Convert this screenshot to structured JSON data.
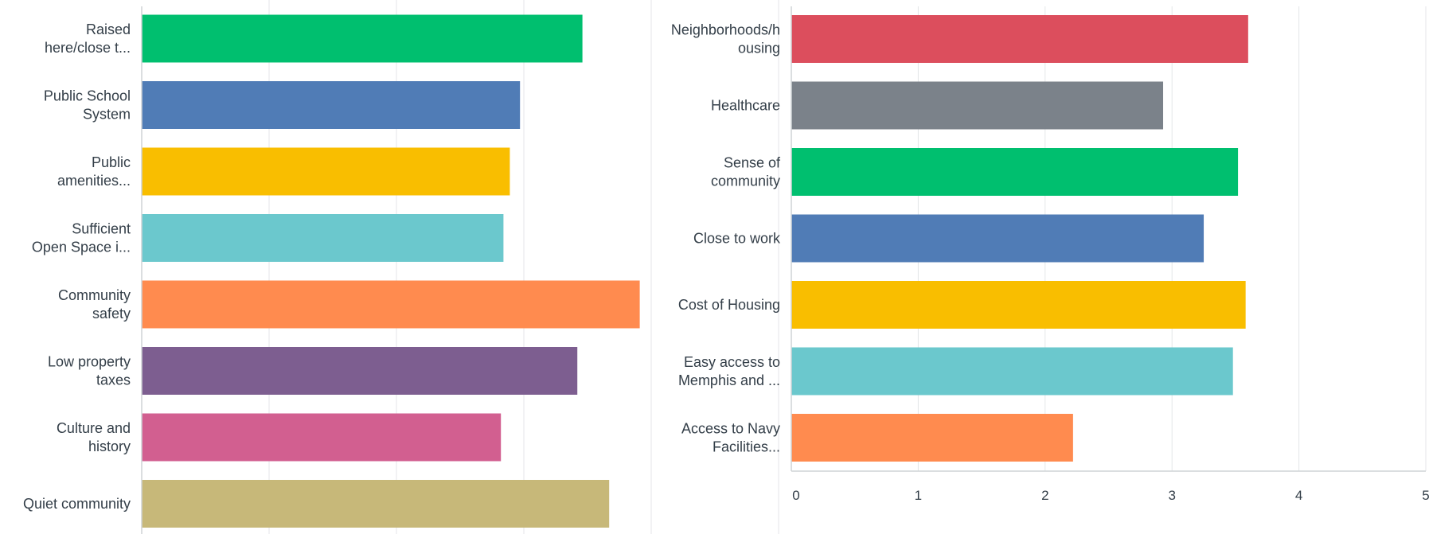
{
  "chart_data": [
    {
      "type": "bar",
      "orientation": "horizontal",
      "categories": [
        [
          "Raised",
          "here/close t..."
        ],
        [
          "Public School",
          "System"
        ],
        [
          "Public",
          "amenities..."
        ],
        [
          "Sufficient",
          "Open Space i..."
        ],
        [
          "Community",
          "safety"
        ],
        [
          "Low property",
          "taxes"
        ],
        [
          "Culture and",
          "history"
        ],
        [
          "Quiet community"
        ]
      ],
      "values": [
        3.46,
        2.97,
        2.89,
        2.84,
        3.91,
        3.42,
        2.82,
        3.67
      ],
      "colors": [
        "#00bf6f",
        "#507cb6",
        "#f9be00",
        "#6bc8cd",
        "#ff8b4f",
        "#7d5e90",
        "#d25f90",
        "#c7b879"
      ],
      "xlim": [
        0,
        5
      ],
      "xticks": [],
      "grid": true
    },
    {
      "type": "bar",
      "orientation": "horizontal",
      "categories": [
        [
          "Neighborhoods/h",
          "ousing"
        ],
        [
          "Healthcare"
        ],
        [
          "Sense of",
          "community"
        ],
        [
          "Close to work"
        ],
        [
          "Cost of Housing"
        ],
        [
          "Easy access to",
          "Memphis and ..."
        ],
        [
          "Access to Navy",
          "Facilities..."
        ]
      ],
      "values": [
        3.6,
        2.93,
        3.52,
        3.25,
        3.58,
        3.48,
        2.22
      ],
      "colors": [
        "#dc4e5d",
        "#7b828a",
        "#00bf6f",
        "#507cb6",
        "#f9be00",
        "#6bc8cd",
        "#ff8b4f"
      ],
      "xlim": [
        0,
        5
      ],
      "xticks": [
        "0",
        "1",
        "2",
        "3",
        "4",
        "5"
      ],
      "grid": true
    }
  ]
}
